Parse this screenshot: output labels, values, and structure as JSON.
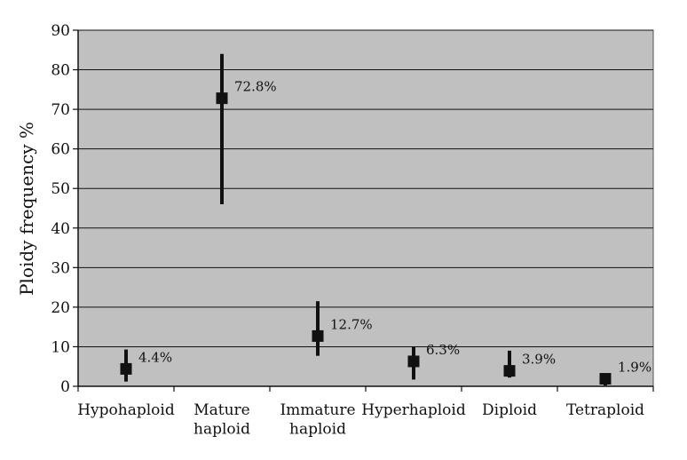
{
  "chart_data": {
    "type": "scatter",
    "title": "",
    "xlabel": "",
    "ylabel": "Ploidy frequency %",
    "ylim": [
      0,
      90
    ],
    "yticks": [
      0,
      10,
      20,
      30,
      40,
      50,
      60,
      70,
      80,
      90
    ],
    "grid": true,
    "plot_background": "#c0c0c0",
    "marker_color": "#111111",
    "categories": [
      [
        "Hypohaploid"
      ],
      [
        "Mature",
        "haploid"
      ],
      [
        "Immature",
        "haploid"
      ],
      [
        "Hyperhaploid"
      ],
      [
        "Diploid"
      ],
      [
        "Tetraploid"
      ]
    ],
    "series": [
      {
        "values": [
          4.4,
          72.8,
          12.7,
          6.3,
          3.9,
          1.9
        ],
        "labels": [
          "4.4%",
          "72.8%",
          "12.7%",
          "6.3%",
          "3.9%",
          "1.9%"
        ],
        "error_low": [
          1.2,
          46,
          7.7,
          1.7,
          2.2,
          0.2
        ],
        "error_high": [
          9.3,
          84,
          21.5,
          10,
          9,
          2.8
        ]
      }
    ]
  }
}
